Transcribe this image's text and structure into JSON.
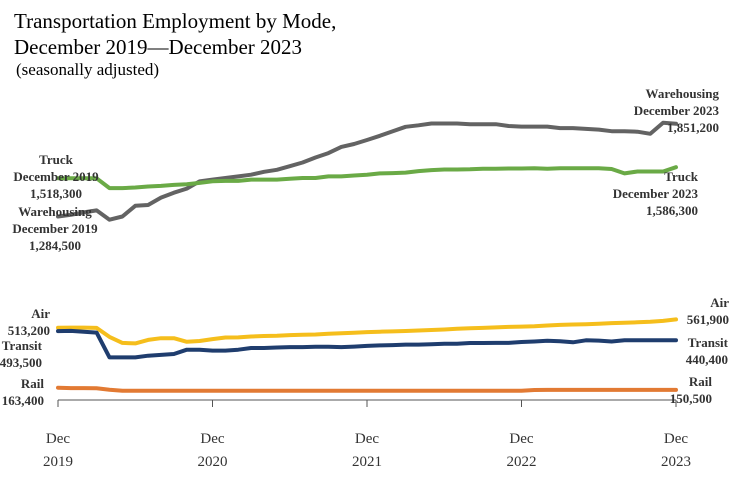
{
  "chart_data": {
    "type": "line",
    "title_line1": "Transportation Employment by Mode,",
    "title_line2": "December 2019—December 2023",
    "subtitle": "(seasonally adjusted)",
    "xlabel": "",
    "ylabel": "",
    "x_ticks": [
      {
        "month": "Dec",
        "year": "2019",
        "index": 0
      },
      {
        "month": "Dec",
        "year": "2020",
        "index": 12
      },
      {
        "month": "Dec",
        "year": "2021",
        "index": 24
      },
      {
        "month": "Dec",
        "year": "2022",
        "index": 36
      },
      {
        "month": "Dec",
        "year": "2023",
        "index": 48
      }
    ],
    "series": [
      {
        "name": "Warehousing",
        "color": "#636363",
        "values": [
          1284500,
          1295000,
          1310000,
          1322000,
          1265000,
          1285000,
          1350000,
          1355000,
          1400000,
          1430000,
          1455000,
          1500000,
          1510000,
          1520000,
          1530000,
          1540000,
          1558000,
          1570000,
          1592000,
          1615000,
          1645000,
          1672000,
          1710000,
          1728000,
          1752000,
          1778000,
          1806000,
          1833000,
          1842000,
          1853000,
          1853000,
          1853000,
          1849000,
          1849000,
          1849000,
          1838000,
          1834000,
          1834000,
          1834000,
          1825000,
          1825000,
          1820000,
          1816000,
          1806000,
          1806000,
          1803000,
          1790000,
          1858200,
          1851200
        ],
        "start_label": [
          "Warehousing",
          "December 2019",
          "1,284,500"
        ],
        "end_label": [
          "Warehousing",
          "December 2023",
          "1,851,200"
        ]
      },
      {
        "name": "Truck",
        "color": "#6aaa46",
        "values": [
          1518300,
          1518300,
          1518300,
          1518300,
          1458000,
          1458000,
          1462000,
          1468000,
          1472000,
          1478000,
          1482000,
          1490000,
          1500000,
          1502000,
          1502000,
          1510000,
          1510000,
          1510000,
          1515000,
          1520000,
          1520000,
          1530000,
          1530000,
          1535000,
          1540000,
          1548000,
          1550000,
          1553000,
          1562000,
          1568000,
          1572000,
          1572000,
          1573000,
          1576000,
          1576000,
          1578000,
          1578000,
          1580000,
          1576000,
          1580000,
          1580000,
          1580000,
          1580000,
          1575000,
          1548000,
          1560000,
          1560000,
          1560000,
          1586300
        ],
        "start_label": [
          "Truck",
          "December 2019",
          "1,518,300"
        ],
        "end_label": [
          "Truck",
          "December 2023",
          "1,586,300"
        ]
      },
      {
        "name": "Air",
        "color": "#f5be1c",
        "values": [
          513200,
          514000,
          514000,
          512000,
          460000,
          425000,
          422000,
          442000,
          452000,
          452000,
          431000,
          436000,
          447000,
          456000,
          457000,
          462000,
          465000,
          467000,
          470000,
          472000,
          474000,
          478000,
          481000,
          484000,
          488000,
          490000,
          492000,
          494000,
          497000,
          500000,
          503000,
          507000,
          510000,
          512000,
          515000,
          518000,
          520000,
          522000,
          526000,
          530000,
          532000,
          534000,
          537000,
          540000,
          542000,
          545000,
          548000,
          553000,
          561900
        ],
        "start_label": [
          "Air",
          "513,200"
        ],
        "end_label": [
          "Air",
          "561,900"
        ]
      },
      {
        "name": "Transit",
        "color": "#1f3d6e",
        "values": [
          493500,
          495000,
          490000,
          485000,
          340000,
          340000,
          340000,
          350000,
          355000,
          360000,
          385000,
          385000,
          380000,
          380000,
          385000,
          395000,
          395000,
          398000,
          400000,
          400000,
          402000,
          402000,
          400000,
          403000,
          407000,
          410000,
          412000,
          415000,
          415000,
          417000,
          420000,
          420000,
          424000,
          424000,
          425000,
          425000,
          430000,
          433000,
          437000,
          434000,
          428000,
          440000,
          438000,
          433000,
          440000,
          440000,
          440000,
          440000,
          440400
        ],
        "start_label": [
          "Transit",
          "493,500"
        ],
        "end_label": [
          "Transit",
          "440,400"
        ]
      },
      {
        "name": "Rail",
        "color": "#e27a33",
        "values": [
          163400,
          161000,
          161000,
          160000,
          152000,
          146000,
          146000,
          146000,
          146000,
          146000,
          146000,
          146000,
          146000,
          146000,
          146000,
          146000,
          146000,
          146000,
          146000,
          146000,
          146000,
          146000,
          146000,
          146000,
          146000,
          146000,
          146000,
          146000,
          146000,
          146000,
          146000,
          146000,
          146000,
          146000,
          146000,
          146000,
          146000,
          150000,
          150500,
          150500,
          150500,
          150500,
          150500,
          150500,
          150500,
          150500,
          150500,
          150500,
          150500
        ],
        "start_label": [
          "Rail",
          "163,400"
        ],
        "end_label": [
          "Rail",
          "150,500"
        ]
      }
    ]
  }
}
